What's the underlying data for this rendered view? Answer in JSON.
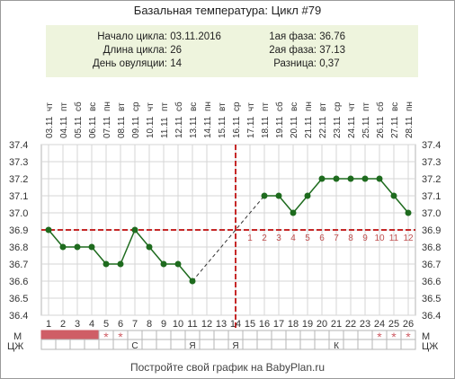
{
  "title": "Базальная температура: Цикл #79",
  "info": {
    "cycle_start_label": "Начало цикла:",
    "cycle_start": "03.11.2016",
    "cycle_length_label": "Длина цикла:",
    "cycle_length": "26",
    "ovulation_day_label": "День овуляции:",
    "ovulation_day": "14",
    "phase1_label": "1ая фаза:",
    "phase1": "36.76",
    "phase2_label": "2ая фаза:",
    "phase2": "37.13",
    "difference_label": "Разница:",
    "difference": "0,37"
  },
  "row_labels": {
    "m": "М",
    "cj": "ЦЖ"
  },
  "footer": "Постройте свой график на BabyPlan.ru",
  "colors": {
    "line": "#1e6b1e",
    "point": "#1e6b1e",
    "ovulation": "#c62828",
    "coverline": "#c62828",
    "phase_numbers": "#c05050",
    "menstruation": "#cf5e66",
    "grid": "#d6d6d6",
    "info_bg": "#eef4dd"
  },
  "chart_data": {
    "type": "line",
    "y_ticks": [
      "37.4",
      "37.3",
      "37.2",
      "37.1",
      "37.0",
      "36.9",
      "36.8",
      "36.7",
      "36.6",
      "36.5",
      "36.4"
    ],
    "ylim": [
      36.4,
      37.4
    ],
    "days": [
      1,
      2,
      3,
      4,
      5,
      6,
      7,
      8,
      9,
      10,
      11,
      12,
      13,
      14,
      15,
      16,
      17,
      18,
      19,
      20,
      21,
      22,
      23,
      24,
      25,
      26
    ],
    "dates": [
      "03.11",
      "04.11",
      "05.11",
      "06.11",
      "07.11",
      "08.11",
      "09.11",
      "10.11",
      "11.11",
      "12.11",
      "13.11",
      "14.11",
      "15.11",
      "16.11",
      "17.11",
      "18.11",
      "19.11",
      "20.11",
      "21.11",
      "22.11",
      "23.11",
      "24.11",
      "25.11",
      "26.11",
      "27.11",
      "28.11"
    ],
    "weekdays": [
      "чт",
      "пт",
      "сб",
      "вс",
      "пн",
      "вт",
      "ср",
      "чт",
      "пт",
      "сб",
      "вс",
      "пн",
      "вт",
      "ср",
      "чт",
      "пт",
      "сб",
      "вс",
      "пн",
      "вт",
      "ср",
      "чт",
      "пт",
      "сб",
      "вс",
      "пн"
    ],
    "temperatures": [
      36.9,
      36.8,
      36.8,
      36.8,
      36.7,
      36.7,
      36.9,
      36.8,
      36.7,
      36.7,
      36.6,
      null,
      null,
      null,
      null,
      37.1,
      37.1,
      37.0,
      37.1,
      37.2,
      37.2,
      37.2,
      37.2,
      37.2,
      37.1,
      37.0
    ],
    "coverline": 36.9,
    "ovulation_day": 14,
    "luteal_day_numbers": [
      "1",
      "2",
      "3",
      "4",
      "5",
      "6",
      "7",
      "8",
      "9",
      "10",
      "11",
      "12"
    ],
    "menstruation_full_days": [
      1,
      2,
      3,
      4
    ],
    "menstruation_spotting_days": [
      5,
      6,
      24,
      25,
      26
    ],
    "spotting_mark": "*",
    "cervical_fluid": [
      {
        "day": 7,
        "code": "С"
      },
      {
        "day": 11,
        "code": "Я"
      },
      {
        "day": 14,
        "code": "Я"
      },
      {
        "day": 21,
        "code": "К"
      }
    ]
  }
}
